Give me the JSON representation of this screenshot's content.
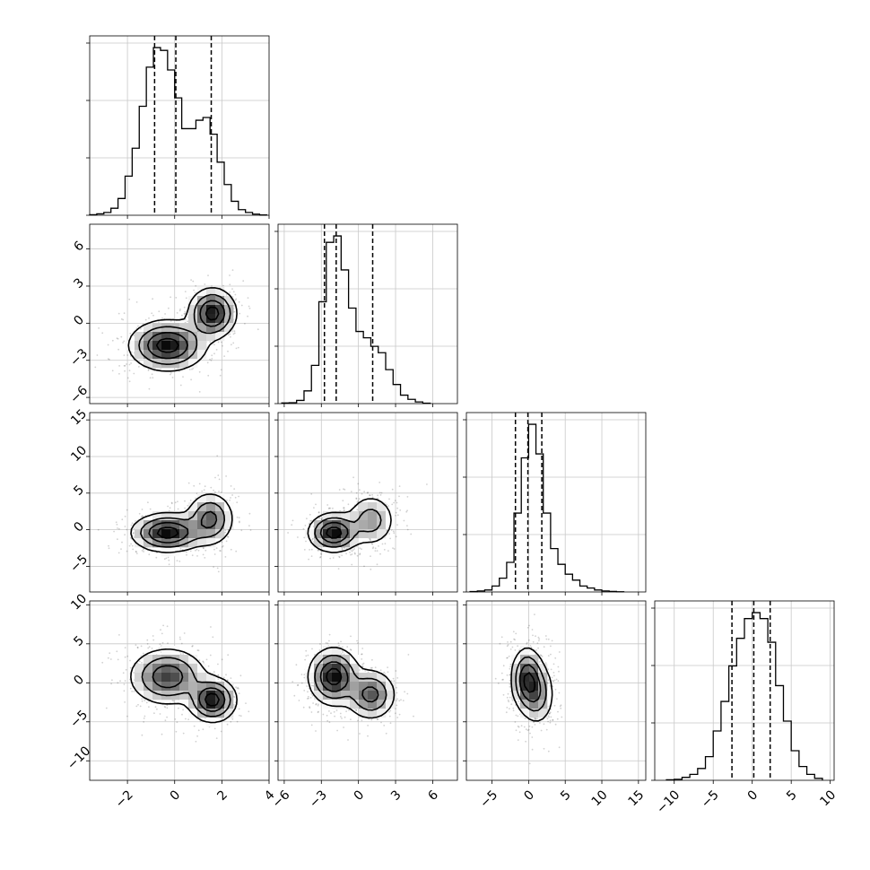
{
  "chart_data": {
    "type": "corner",
    "parameters": 4,
    "grid": true,
    "quantile_lines": "dashed",
    "diagonal_histograms": [
      {
        "param": 0,
        "xlim": [
          -3.6,
          4.0
        ],
        "edges": [
          -3.6,
          -3.3,
          -3.0,
          -2.7,
          -2.4,
          -2.1,
          -1.8,
          -1.5,
          -1.2,
          -0.9,
          -0.6,
          -0.3,
          0.0,
          0.3,
          0.6,
          0.9,
          1.2,
          1.5,
          1.8,
          2.1,
          2.4,
          2.7,
          3.0,
          3.3,
          3.6,
          3.9
        ],
        "values": [
          0.2,
          0.5,
          1.0,
          2.5,
          6.0,
          14.0,
          24.0,
          39.0,
          53.0,
          60.0,
          59.0,
          52.0,
          42.0,
          31.0,
          31.0,
          34.0,
          35.0,
          29.0,
          19.0,
          11.0,
          5.0,
          2.0,
          1.0,
          0.4,
          0.1
        ],
        "quantiles": [
          -0.85,
          0.05,
          1.55
        ]
      },
      {
        "param": 1,
        "xlim": [
          -6.5,
          8.0
        ],
        "edges": [
          -6.2,
          -5.6,
          -5.0,
          -4.4,
          -3.8,
          -3.2,
          -2.6,
          -2.0,
          -1.4,
          -0.8,
          -0.2,
          0.4,
          1.0,
          1.6,
          2.2,
          2.8,
          3.4,
          4.0,
          4.6,
          5.2,
          5.8
        ],
        "values": [
          0.3,
          0.4,
          1.5,
          6,
          18,
          48,
          76,
          79,
          63,
          45,
          34,
          31,
          27,
          24,
          16,
          9,
          4,
          2,
          0.8,
          0.2
        ],
        "quantiles": [
          -2.75,
          -1.8,
          1.15
        ]
      },
      {
        "param": 2,
        "xlim": [
          -8.5,
          16.0
        ],
        "edges": [
          -8,
          -7,
          -6,
          -5,
          -4,
          -3,
          -2,
          -1,
          0,
          1,
          2,
          3,
          4,
          5,
          6,
          7,
          8,
          9,
          10,
          11,
          12,
          13
        ],
        "values": [
          0.2,
          0.5,
          1,
          3,
          7,
          15,
          40,
          68,
          85,
          70,
          40,
          22,
          14,
          9,
          6,
          3,
          2,
          1,
          0.5,
          0.3,
          0.1
        ],
        "quantiles": [
          -1.8,
          -0.1,
          1.8
        ]
      },
      {
        "param": 3,
        "xlim": [
          -12.5,
          10.5
        ],
        "edges": [
          -11,
          -10,
          -9,
          -8,
          -7,
          -6,
          -5,
          -4,
          -3,
          -2,
          -1,
          0,
          1,
          2,
          3,
          4,
          5,
          6,
          7,
          8,
          9
        ],
        "values": [
          0.3,
          0.5,
          1.5,
          3,
          6,
          12,
          25,
          40,
          58,
          72,
          82,
          85,
          82,
          70,
          48,
          30,
          15,
          7,
          3,
          1
        ],
        "quantiles": [
          -2.6,
          0.2,
          2.3
        ]
      }
    ],
    "pair_panels": [
      {
        "x_param": 0,
        "y_param": 1,
        "xlim": [
          -3.6,
          4.0
        ],
        "ylim": [
          -6.5,
          8.0
        ],
        "modes": [
          {
            "cx": -0.3,
            "cy": -1.8,
            "sx": 0.8,
            "sy": 1.0
          },
          {
            "cx": 1.6,
            "cy": 0.8,
            "sx": 0.5,
            "sy": 1.0
          }
        ]
      },
      {
        "x_param": 0,
        "y_param": 2,
        "xlim": [
          -3.6,
          4.0
        ],
        "ylim": [
          -8.5,
          16.0
        ],
        "modes": [
          {
            "cx": -0.3,
            "cy": -0.4,
            "sx": 0.75,
            "sy": 1.3
          },
          {
            "cx": 1.5,
            "cy": 1.5,
            "sx": 0.5,
            "sy": 1.8
          }
        ]
      },
      {
        "x_param": 1,
        "y_param": 2,
        "xlim": [
          -6.5,
          8.0
        ],
        "ylim": [
          -8.5,
          16.0
        ],
        "modes": [
          {
            "cx": -2.0,
            "cy": -0.4,
            "sx": 1.0,
            "sy": 1.3
          },
          {
            "cx": 1.0,
            "cy": 1.3,
            "sx": 1.0,
            "sy": 1.8
          }
        ]
      },
      {
        "x_param": 0,
        "y_param": 3,
        "xlim": [
          -3.6,
          4.0
        ],
        "ylim": [
          -12.5,
          10.5
        ],
        "modes": [
          {
            "cx": -0.3,
            "cy": 0.8,
            "sx": 0.8,
            "sy": 1.8
          },
          {
            "cx": 1.6,
            "cy": -2.2,
            "sx": 0.5,
            "sy": 1.4
          }
        ]
      },
      {
        "x_param": 1,
        "y_param": 3,
        "xlim": [
          -6.5,
          8.0
        ],
        "ylim": [
          -12.5,
          10.5
        ],
        "modes": [
          {
            "cx": -2.0,
            "cy": 0.8,
            "sx": 1.0,
            "sy": 1.8
          },
          {
            "cx": 1.0,
            "cy": -1.5,
            "sx": 1.0,
            "sy": 1.6
          }
        ]
      },
      {
        "x_param": 2,
        "y_param": 3,
        "xlim": [
          -8.5,
          16.0
        ],
        "ylim": [
          -12.5,
          10.5
        ],
        "modes": [
          {
            "cx": -0.2,
            "cy": 0.5,
            "sx": 1.1,
            "sy": 2.0
          },
          {
            "cx": 1.2,
            "cy": -1.5,
            "sx": 1.2,
            "sy": 2.0
          }
        ]
      }
    ],
    "x_tick_labels": [
      [
        "−2",
        "0",
        "2",
        "4"
      ],
      [
        "−6",
        "−3",
        "0",
        "3",
        "6"
      ],
      [
        "−5",
        "0",
        "5",
        "10",
        "15"
      ],
      [
        "−10",
        "−5",
        "0",
        "5",
        "10"
      ]
    ],
    "y_tick_labels": [
      [],
      [
        "−6",
        "−3",
        "0",
        "3",
        "6"
      ],
      [
        "−5",
        "0",
        "5",
        "10",
        "15"
      ],
      [
        "−10",
        "−5",
        "0",
        "5",
        "10"
      ]
    ],
    "x_tick_values": [
      [
        -2,
        0,
        2,
        4
      ],
      [
        -6,
        -3,
        0,
        3,
        6
      ],
      [
        -5,
        0,
        5,
        10,
        15
      ],
      [
        -10,
        -5,
        0,
        5,
        10
      ]
    ],
    "y_tick_values": [
      [],
      [
        -6,
        -3,
        0,
        3,
        6
      ],
      [
        -5,
        0,
        5,
        10,
        15
      ],
      [
        -10,
        -5,
        0,
        5,
        10
      ]
    ]
  }
}
